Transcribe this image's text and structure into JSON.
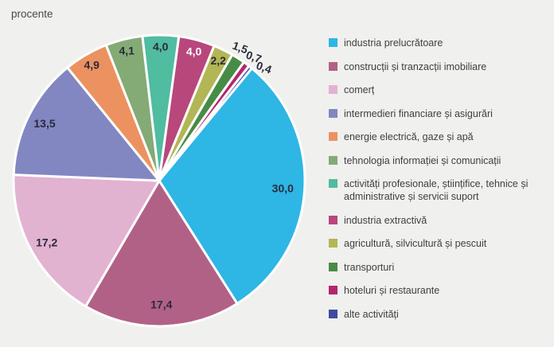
{
  "chart_data": {
    "type": "pie",
    "unit_label": "procente",
    "direction": "clockwise",
    "start_angle_deg": 39.5,
    "legend_position": "right",
    "background_color": "#F0F0EF",
    "value_label_color": "#2A2A3A",
    "slices": [
      {
        "label": "industria prelucrătoare",
        "value": 30.0,
        "display": "30,0",
        "color": "#2EB6E4"
      },
      {
        "label": "construcții și tranzacții imobiliare",
        "value": 17.4,
        "display": "17,4",
        "color": "#B26186"
      },
      {
        "label": "comerț",
        "value": 17.2,
        "display": "17,2",
        "color": "#E2B2D1"
      },
      {
        "label": "intermedieri financiare și asigurări",
        "value": 13.5,
        "display": "13,5",
        "color": "#8287C2"
      },
      {
        "label": "energie electrică, gaze și apă",
        "value": 4.9,
        "display": "4,9",
        "color": "#EC9260"
      },
      {
        "label": "tehnologia informației și comunicații",
        "value": 4.1,
        "display": "4,1",
        "color": "#84AA76"
      },
      {
        "label": "activități profesionale, științifice, tehnice și administrative și servicii suport",
        "value": 4.0,
        "display": "4,0",
        "color": "#50BCA0"
      },
      {
        "label": "industria extractivă",
        "value": 4.0,
        "display": "4,0",
        "color": "#B8477C",
        "value_label_color": "#FFFFFF"
      },
      {
        "label": "agricultură, silvicultură și pescuit",
        "value": 2.2,
        "display": "2,2",
        "color": "#B3B654"
      },
      {
        "label": "transporturi",
        "value": 1.5,
        "display": "1,5",
        "color": "#478C46"
      },
      {
        "label": "hoteluri și restaurante",
        "value": 0.7,
        "display": "0,7",
        "color": "#B5256E"
      },
      {
        "label": "alte activități",
        "value": 0.4,
        "display": "0,4",
        "color": "#3D4B9E"
      }
    ]
  }
}
